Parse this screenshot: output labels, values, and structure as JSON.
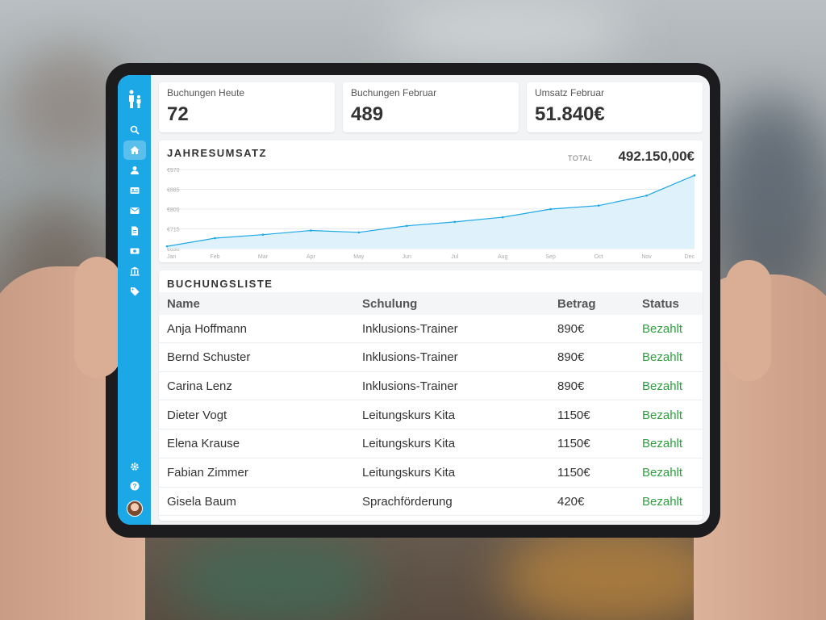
{
  "stats": [
    {
      "label": "Buchungen Heute",
      "value": "72"
    },
    {
      "label": "Buchungen Februar",
      "value": "489"
    },
    {
      "label": "Umsatz Februar",
      "value": "51.840€"
    }
  ],
  "revenue": {
    "title": "JAHRESUMSATZ",
    "total_label": "TOTAL",
    "total_value": "492.150,00€"
  },
  "chart_data": {
    "type": "area",
    "title": "JAHRESUMSATZ",
    "categories": [
      "Jan",
      "Feb",
      "Mar",
      "Apr",
      "May",
      "Jun",
      "Jul",
      "Aug",
      "Sep",
      "Oct",
      "Nov",
      "Dec"
    ],
    "series": [
      {
        "values": [
          640,
          675,
          690,
          708,
          700,
          728,
          745,
          765,
          800,
          815,
          858,
          945
        ]
      }
    ],
    "yticks": [
      "€630",
      "€715",
      "€800",
      "€885",
      "€970"
    ],
    "ylim": [
      630,
      970
    ],
    "grid": true,
    "colors": {
      "line": "#1ca7e6",
      "fill": "#dff1fa"
    }
  },
  "bookings": {
    "title": "BUCHUNGSLISTE",
    "columns": [
      "Name",
      "Schulung",
      "Betrag",
      "Status"
    ],
    "rows": [
      {
        "name": "Anja Hoffmann",
        "course": "Inklusions-Trainer",
        "amount": "890€",
        "status": "Bezahlt"
      },
      {
        "name": "Bernd Schuster",
        "course": "Inklusions-Trainer",
        "amount": "890€",
        "status": "Bezahlt"
      },
      {
        "name": "Carina Lenz",
        "course": "Inklusions-Trainer",
        "amount": "890€",
        "status": "Bezahlt"
      },
      {
        "name": "Dieter Vogt",
        "course": "Leitungskurs Kita",
        "amount": "1150€",
        "status": "Bezahlt"
      },
      {
        "name": "Elena Krause",
        "course": "Leitungskurs Kita",
        "amount": "1150€",
        "status": "Bezahlt"
      },
      {
        "name": "Fabian Zimmer",
        "course": "Leitungskurs Kita",
        "amount": "1150€",
        "status": "Bezahlt"
      },
      {
        "name": "Gisela Baum",
        "course": "Sprachförderung",
        "amount": "420€",
        "status": "Bezahlt"
      }
    ]
  },
  "sidebar": {
    "logo_icon": "family-icon",
    "items": [
      {
        "icon": "search-icon",
        "active": false
      },
      {
        "icon": "home-icon",
        "active": true
      },
      {
        "icon": "user-icon",
        "active": false
      },
      {
        "icon": "id-card-icon",
        "active": false
      },
      {
        "icon": "mail-icon",
        "active": false
      },
      {
        "icon": "document-icon",
        "active": false
      },
      {
        "icon": "money-icon",
        "active": false
      },
      {
        "icon": "bank-icon",
        "active": false
      },
      {
        "icon": "tag-icon",
        "active": false
      }
    ],
    "bottom": [
      {
        "icon": "gear-icon"
      },
      {
        "icon": "help-icon"
      },
      {
        "icon": "avatar"
      }
    ],
    "accent": "#1ca7e6"
  }
}
